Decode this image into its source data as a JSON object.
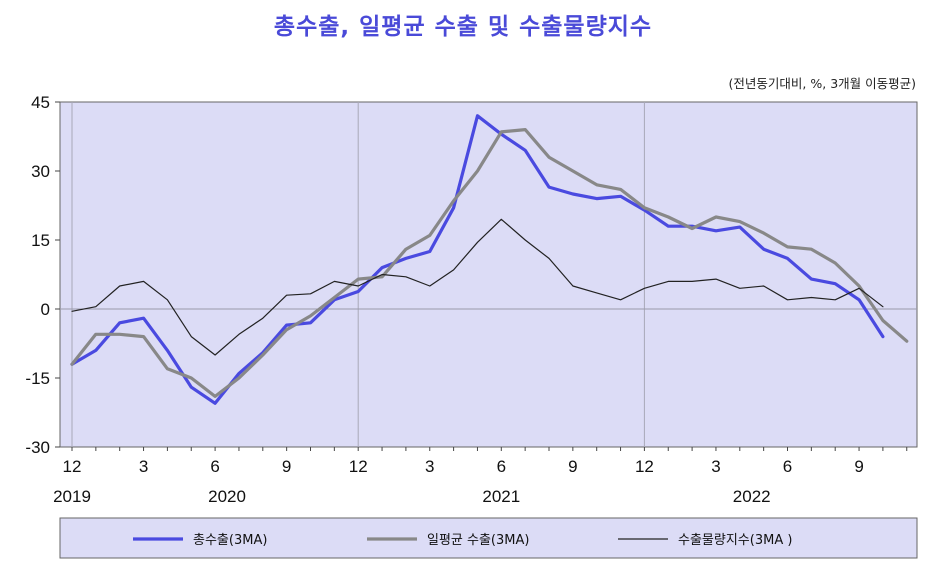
{
  "colors": {
    "title": "#4a4ad8",
    "plot_bg": "#dcdcf6",
    "legend_bg": "#dcdcf6"
  },
  "chart_data": {
    "type": "line",
    "title": "총수출, 일평균 수출 및 수출물량지수",
    "unit_note": "(전년동기대비, %, 3개월 이동평균)",
    "x_tick_labels": [
      "12",
      "3",
      "6",
      "9",
      "12",
      "3",
      "6",
      "9",
      "12",
      "3",
      "6",
      "9"
    ],
    "year_labels": [
      "2019",
      "2020",
      "2021",
      "2022"
    ],
    "ylim": [
      -30,
      45
    ],
    "y_ticks": [
      -30,
      -15,
      0,
      15,
      30,
      45
    ],
    "grid": "vertical lines at each December",
    "legend_position": "bottom",
    "series": [
      {
        "name": "총수출(3MA)",
        "color": "#4a4ae0",
        "width": 3.2,
        "values": [
          -12,
          -9,
          -3,
          -2,
          -9,
          -17,
          -20.5,
          -14,
          -9.5,
          -3.5,
          -3,
          2,
          3.8,
          9,
          11,
          12.5,
          22,
          42,
          38,
          34.5,
          26.5,
          25,
          24,
          24.5,
          21.5,
          18,
          18,
          17,
          17.8,
          13,
          11,
          6.5,
          5.5,
          2,
          -6
        ]
      },
      {
        "name": "일평균 수출(3MA)",
        "color": "#888888",
        "width": 3.2,
        "values": [
          -12,
          -5.5,
          -5.5,
          -6,
          -13,
          -15,
          -19,
          -15,
          -10,
          -4.5,
          -1.5,
          2.5,
          6.5,
          7,
          13,
          16,
          23.5,
          30,
          38.5,
          39,
          33,
          30,
          27,
          26,
          22,
          20,
          17.5,
          20,
          19,
          16.5,
          13.5,
          13,
          10,
          5,
          -2.5,
          -7
        ]
      },
      {
        "name": "수출물량지수(3MA )",
        "color": "#222222",
        "width": 1.2,
        "values": [
          -0.5,
          0.5,
          5,
          6,
          2,
          -6,
          -10,
          -5.5,
          -2,
          3,
          3.3,
          6,
          5,
          7.5,
          7,
          5,
          8.5,
          14.5,
          19.5,
          15,
          11,
          5,
          3.5,
          2,
          4.5,
          6,
          6,
          6.5,
          4.5,
          5,
          2,
          2.5,
          2,
          4.5,
          0.5
        ]
      }
    ]
  }
}
